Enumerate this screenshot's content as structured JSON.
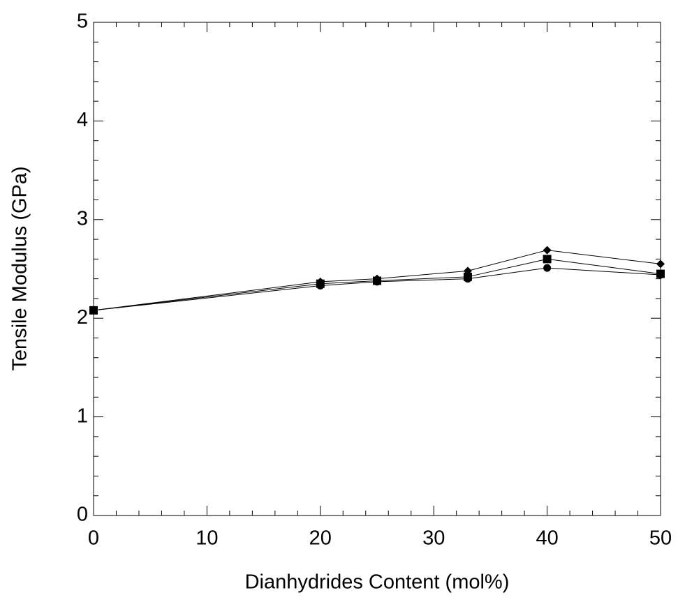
{
  "chart_data": {
    "type": "line",
    "x_label": "Dianhydrides Content (mol%)",
    "y_label": "Tensile Modulus (GPa)",
    "x": [
      0,
      20,
      25,
      33,
      40,
      50
    ],
    "series": [
      {
        "marker": "diamond",
        "color": "#000000",
        "values": [
          2.08,
          2.37,
          2.4,
          2.48,
          2.69,
          2.55
        ]
      },
      {
        "marker": "square",
        "color": "#000000",
        "values": [
          2.08,
          2.35,
          2.38,
          2.42,
          2.6,
          2.45
        ]
      },
      {
        "marker": "circle",
        "color": "#000000",
        "values": [
          2.08,
          2.33,
          2.37,
          2.4,
          2.51,
          2.44
        ]
      }
    ],
    "xlim": [
      0,
      50
    ],
    "ylim": [
      0,
      5
    ],
    "xticks": [
      0,
      10,
      20,
      30,
      40,
      50
    ],
    "yticks": [
      0,
      1,
      2,
      3,
      4,
      5
    ],
    "xminorticks": [
      2,
      4,
      6,
      8,
      12,
      14,
      16,
      18,
      22,
      24,
      26,
      28,
      32,
      34,
      36,
      38,
      42,
      44,
      46,
      48
    ],
    "yminorticks": [
      0.2,
      0.4,
      0.6,
      0.8,
      1.2,
      1.4,
      1.6,
      1.8,
      2.2,
      2.4,
      2.6,
      2.8,
      3.2,
      3.4,
      3.6,
      3.8,
      4.2,
      4.4,
      4.6,
      4.8
    ],
    "grid": false
  }
}
